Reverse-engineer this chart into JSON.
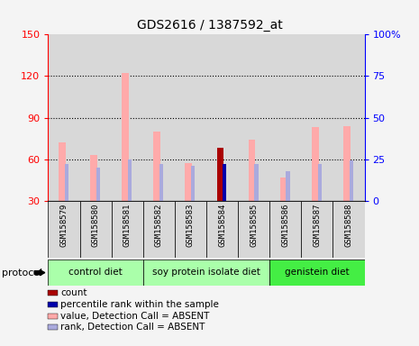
{
  "title": "GDS2616 / 1387592_at",
  "samples": [
    "GSM158579",
    "GSM158580",
    "GSM158581",
    "GSM158582",
    "GSM158583",
    "GSM158584",
    "GSM158585",
    "GSM158586",
    "GSM158587",
    "GSM158588"
  ],
  "values": [
    72,
    63,
    122,
    80,
    57,
    68,
    74,
    47,
    83,
    84
  ],
  "ranks": [
    22,
    20,
    25,
    22,
    21,
    22,
    22,
    18,
    22,
    24
  ],
  "counts": [
    0,
    0,
    0,
    0,
    0,
    68,
    0,
    0,
    0,
    0
  ],
  "count_ranks": [
    0,
    0,
    0,
    0,
    0,
    22,
    0,
    0,
    0,
    0
  ],
  "ylim_left": [
    30,
    150
  ],
  "ylim_right": [
    0,
    100
  ],
  "left_ticks": [
    30,
    60,
    90,
    120,
    150
  ],
  "right_ticks": [
    0,
    25,
    50,
    75,
    100
  ],
  "left_tick_labels": [
    "30",
    "60",
    "90",
    "120",
    "150"
  ],
  "right_tick_labels": [
    "0",
    "25",
    "50",
    "75",
    "100%"
  ],
  "bar_color_value": "#ffaaaa",
  "bar_color_rank": "#aaaadd",
  "bar_color_count": "#aa0000",
  "bar_color_count_rank": "#0000aa",
  "background_color": "#d8d8d8",
  "plot_bg": "#ffffff",
  "group_bounds": [
    {
      "start": 0,
      "end": 2,
      "color": "#aaffaa",
      "label": "control diet"
    },
    {
      "start": 3,
      "end": 6,
      "color": "#aaffaa",
      "label": "soy protein isolate diet"
    },
    {
      "start": 7,
      "end": 9,
      "color": "#44ee44",
      "label": "genistein diet"
    }
  ],
  "legend_items": [
    {
      "color": "#aa0000",
      "label": "count"
    },
    {
      "color": "#0000aa",
      "label": "percentile rank within the sample"
    },
    {
      "color": "#ffaaaa",
      "label": "value, Detection Call = ABSENT"
    },
    {
      "color": "#aaaadd",
      "label": "rank, Detection Call = ABSENT"
    }
  ]
}
